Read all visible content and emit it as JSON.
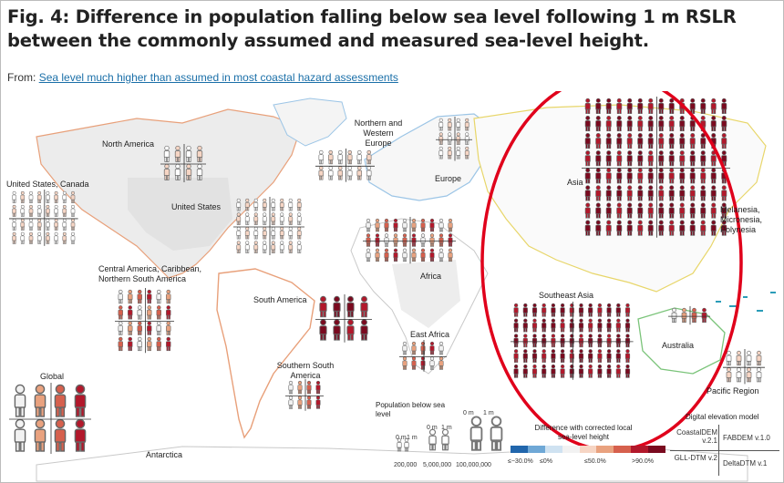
{
  "header": {
    "title": "Fig. 4: Difference in population falling below sea level following 1 m RSLR between the commonly assumed and measured sea-level height.",
    "from_prefix": "From:",
    "from_link": "Sea level much higher than assumed in most coastal hazard assessments"
  },
  "regions": {
    "north_america": "North America",
    "us_canada": "United States, Canada",
    "united_states": "United States",
    "nw_europe": "Northern and Western Europe",
    "europe": "Europe",
    "asia": "Asia",
    "melanesia": "Melanesia, Micronesia, Polynesia",
    "central_america": "Central America, Caribbean, Northern South America",
    "south_america": "South America",
    "africa": "Africa",
    "east_africa": "East Africa",
    "southeast_asia": "Southeast Asia",
    "australia": "Australia",
    "southern_south_america": "Southern South America",
    "global": "Global",
    "antarctica": "Antarctica",
    "pacific": "Pacific Region"
  },
  "legend": {
    "population_title": "Population below sea level",
    "size_labels": [
      "0 m",
      "1 m",
      "0 m",
      "1 m",
      "0 m",
      "1 m"
    ],
    "population_values": [
      "200,000",
      "5,000,000",
      "100,000,000"
    ],
    "color_title": "Difference with corrected local sea-level height",
    "color_ticks": [
      "≤−30.0%",
      "≤0%",
      "≤50.0%",
      ">90.0%"
    ],
    "colors": [
      "#2166ac",
      "#6fa8d6",
      "#cfe2f1",
      "#f2f2f2",
      "#f6d5c4",
      "#e9a27f",
      "#d6604d",
      "#b2182b",
      "#7a0a1f"
    ],
    "dem_title": "Digital elevation model",
    "dem_rows": [
      {
        "left": "CoastalDEM v.2.1",
        "right": "FABDEM v.1.0"
      },
      {
        "left": "GLL-DTM v.2",
        "right": "DeltaDTM v.1"
      }
    ]
  },
  "annotation": {
    "ellipse_color": "#e0001b"
  }
}
